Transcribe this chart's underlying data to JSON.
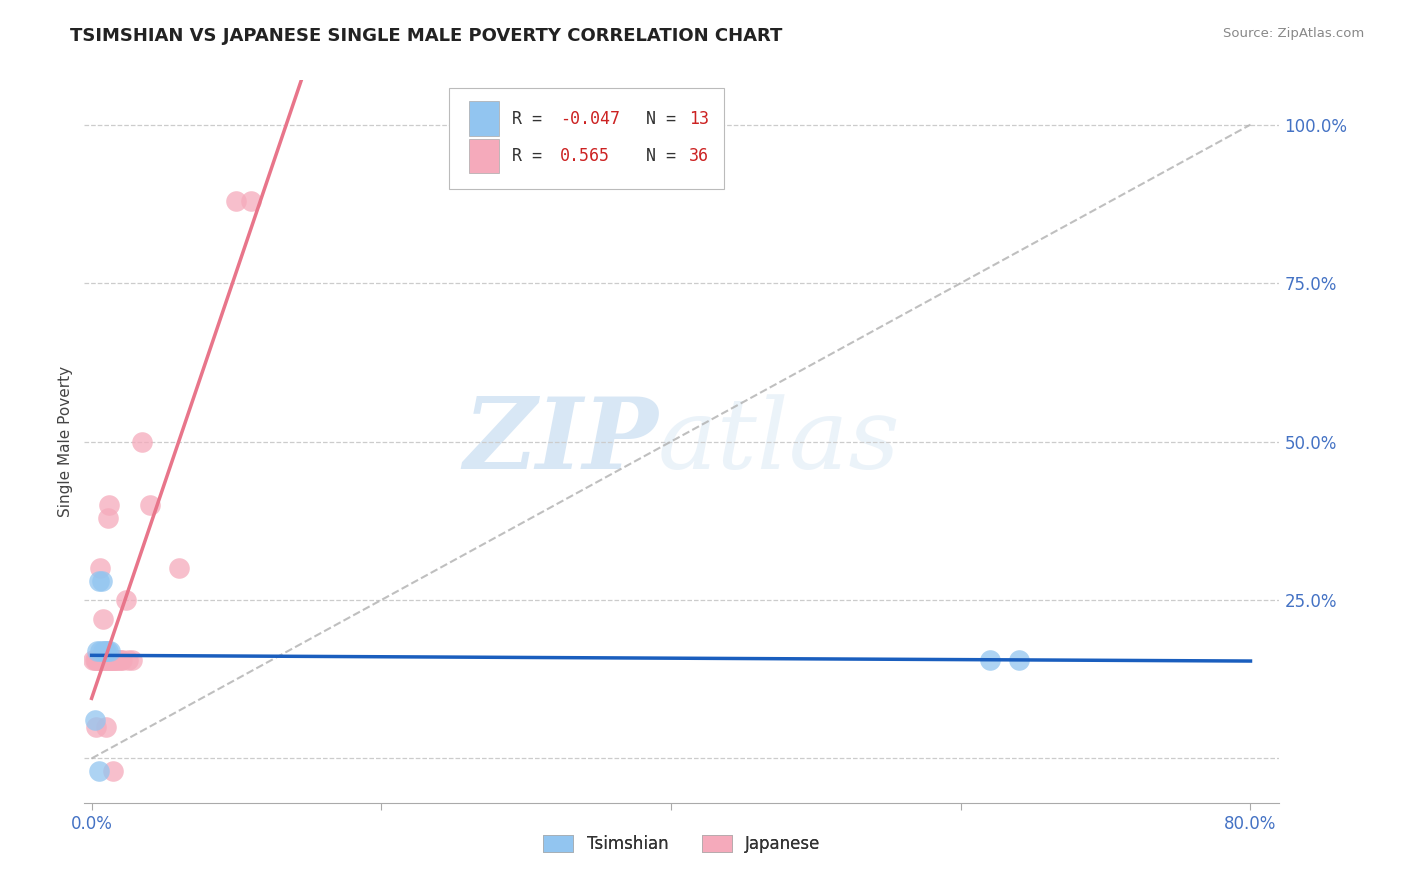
{
  "title": "TSIMSHIAN VS JAPANESE SINGLE MALE POVERTY CORRELATION CHART",
  "source": "Source: ZipAtlas.com",
  "ylabel": "Single Male Poverty",
  "xlim": [
    -0.005,
    0.82
  ],
  "ylim": [
    -0.07,
    1.07
  ],
  "x_ticks": [
    0.0,
    0.2,
    0.4,
    0.6,
    0.8
  ],
  "x_tick_labels": [
    "0.0%",
    "",
    "",
    "",
    "80.0%"
  ],
  "y_ticks": [
    0.0,
    0.25,
    0.5,
    0.75,
    1.0
  ],
  "y_tick_labels": [
    "",
    "25.0%",
    "50.0%",
    "75.0%",
    "100.0%"
  ],
  "tsimshian_R": -0.047,
  "tsimshian_N": 13,
  "japanese_R": 0.565,
  "japanese_N": 36,
  "tsimshian_color": "#92C5F0",
  "japanese_color": "#F5AABB",
  "tsimshian_line_color": "#1A5EBE",
  "japanese_line_color": "#E8758A",
  "background_color": "#ffffff",
  "grid_color": "#cccccc",
  "tsimshian_x": [
    0.002,
    0.004,
    0.005,
    0.006,
    0.007,
    0.008,
    0.009,
    0.01,
    0.011,
    0.013,
    0.62,
    0.64,
    0.005
  ],
  "tsimshian_y": [
    0.06,
    0.17,
    0.28,
    0.17,
    0.28,
    0.17,
    0.17,
    0.17,
    0.17,
    0.17,
    0.155,
    0.155,
    -0.02
  ],
  "japanese_x": [
    0.001,
    0.002,
    0.003,
    0.003,
    0.004,
    0.005,
    0.005,
    0.006,
    0.006,
    0.007,
    0.008,
    0.008,
    0.009,
    0.01,
    0.01,
    0.011,
    0.011,
    0.012,
    0.012,
    0.013,
    0.014,
    0.015,
    0.015,
    0.016,
    0.017,
    0.018,
    0.02,
    0.021,
    0.024,
    0.025,
    0.028,
    0.035,
    0.04,
    0.06,
    0.1,
    0.11
  ],
  "japanese_y": [
    0.155,
    0.155,
    0.155,
    0.05,
    0.155,
    0.155,
    0.155,
    0.3,
    0.155,
    0.155,
    0.22,
    0.155,
    0.155,
    0.155,
    0.05,
    0.155,
    0.38,
    0.155,
    0.4,
    0.155,
    0.155,
    0.155,
    -0.02,
    0.155,
    0.155,
    0.155,
    0.155,
    0.155,
    0.25,
    0.155,
    0.155,
    0.5,
    0.4,
    0.3,
    0.88,
    0.88
  ]
}
